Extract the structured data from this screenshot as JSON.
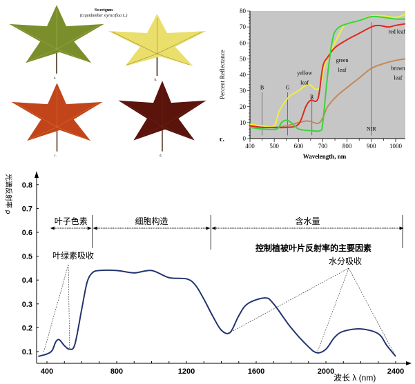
{
  "leaves_panel": {
    "title": "Sweetgum",
    "subtitle": "(Liquidambar styraciflua L.)",
    "leaves": [
      {
        "label": "a.",
        "color": "#7a8f2c",
        "vein": "#b9b24a"
      },
      {
        "label": "b.",
        "color": "#e9df6a",
        "vein": "#8a5a2a"
      },
      {
        "label": "c.",
        "color": "#c2441a",
        "vein": "#e08a3a"
      },
      {
        "label": "d.",
        "color": "#5a140c",
        "vein": "#7a2a1a"
      }
    ]
  },
  "chart_data": [
    {
      "type": "line",
      "panel_label": "c.",
      "xlabel": "Wavelength, nm",
      "ylabel": "Percent Reflectance",
      "xlim": [
        400,
        1040
      ],
      "ylim": [
        0,
        80
      ],
      "xticks": [
        400,
        500,
        600,
        700,
        800,
        900,
        1000
      ],
      "yticks": [
        0,
        10,
        20,
        30,
        40,
        50,
        60,
        70,
        80
      ],
      "background": "#c6c6c6",
      "series": [
        {
          "name": "brown leaf",
          "label_lines": [
            "brown",
            "leaf"
          ],
          "color": "#c08a5a",
          "x": [
            400,
            450,
            500,
            550,
            600,
            640,
            680,
            700,
            720,
            760,
            800,
            850,
            900,
            950,
            1000,
            1040
          ],
          "y": [
            8,
            7.5,
            7,
            8,
            10,
            11,
            9.5,
            13,
            20,
            27,
            32,
            38,
            44,
            47,
            49,
            50
          ]
        },
        {
          "name": "yellow leaf",
          "label_lines": [
            "yellow",
            "leaf"
          ],
          "color": "#f2ee3a",
          "x": [
            400,
            450,
            500,
            520,
            560,
            600,
            640,
            670,
            690,
            710,
            750,
            780,
            800,
            850,
            900,
            950,
            1000,
            1040
          ],
          "y": [
            9,
            8,
            8,
            17,
            26,
            30,
            34,
            31,
            33,
            47,
            60,
            69,
            72,
            74,
            77,
            77,
            76,
            78
          ]
        },
        {
          "name": "red leaf",
          "label_lines": [
            "red leaf"
          ],
          "color": "#e0261e",
          "x": [
            400,
            450,
            500,
            550,
            600,
            630,
            650,
            680,
            700,
            720,
            750,
            800,
            850,
            900,
            930,
            970,
            1000,
            1040
          ],
          "y": [
            8,
            7,
            7,
            7,
            9,
            20,
            24,
            25,
            45,
            51,
            57,
            62,
            66,
            70,
            71,
            70,
            71,
            72
          ]
        },
        {
          "name": "green leaf",
          "label_lines": [
            "green",
            "leaf"
          ],
          "color": "#38d43a",
          "x": [
            400,
            450,
            510,
            530,
            550,
            570,
            600,
            650,
            690,
            700,
            720,
            740,
            760,
            800,
            850,
            900,
            950,
            1000,
            1040
          ],
          "y": [
            7,
            6,
            6,
            10,
            11.5,
            10,
            6,
            5,
            5,
            10,
            40,
            62,
            69,
            72,
            74,
            76.5,
            76,
            75,
            75
          ]
        }
      ],
      "band_markers": [
        {
          "label": "B",
          "x": 450
        },
        {
          "label": "G",
          "x": 555
        },
        {
          "label": "R",
          "x": 655
        },
        {
          "label": "NIR",
          "x": 900
        }
      ]
    },
    {
      "type": "line",
      "xlabel": "波长 λ (nm)",
      "ylabel": "光谱反射率 ρ",
      "xlim": [
        350,
        2450
      ],
      "ylim": [
        0.06,
        0.85
      ],
      "xticks": [
        400,
        800,
        1200,
        1600,
        2000,
        2400
      ],
      "yticks": [
        "0.1",
        "0.2",
        "0.3",
        "0.4",
        "0.5",
        "0.6",
        "0.7",
        "0.8"
      ],
      "series": [
        {
          "name": "vegetation reflectance",
          "color": "#23346e",
          "x": [
            350,
            400,
            430,
            450,
            470,
            500,
            530,
            560,
            600,
            630,
            660,
            700,
            800,
            900,
            1000,
            1100,
            1200,
            1250,
            1300,
            1350,
            1400,
            1450,
            1500,
            1550,
            1650,
            1700,
            1800,
            1900,
            1950,
            2000,
            2050,
            2100,
            2200,
            2300,
            2350,
            2400
          ],
          "y": [
            0.08,
            0.09,
            0.105,
            0.14,
            0.15,
            0.125,
            0.11,
            0.13,
            0.28,
            0.39,
            0.43,
            0.44,
            0.44,
            0.43,
            0.44,
            0.41,
            0.405,
            0.38,
            0.32,
            0.25,
            0.19,
            0.18,
            0.25,
            0.3,
            0.325,
            0.3,
            0.2,
            0.12,
            0.095,
            0.11,
            0.16,
            0.185,
            0.195,
            0.175,
            0.125,
            0.08
          ]
        }
      ],
      "regions": [
        {
          "label": "叶子色素",
          "from": 415,
          "to": 660
        },
        {
          "label": "细胞构造",
          "from": 660,
          "to": 1340
        },
        {
          "label": "含水量",
          "from": 1340,
          "to": 2450
        }
      ],
      "factors_title": "控制植被叶片反射率的主要因素",
      "annotations": [
        {
          "label": "叶绿素吸收",
          "targets": [
            {
              "x": 380,
              "y": 0.095
            },
            {
              "x": 530,
              "y": 0.11
            }
          ]
        },
        {
          "label": "水分吸收",
          "targets": [
            {
              "x": 1450,
              "y": 0.18
            },
            {
              "x": 1950,
              "y": 0.095
            },
            {
              "x": 2400,
              "y": 0.08
            }
          ]
        }
      ]
    }
  ]
}
